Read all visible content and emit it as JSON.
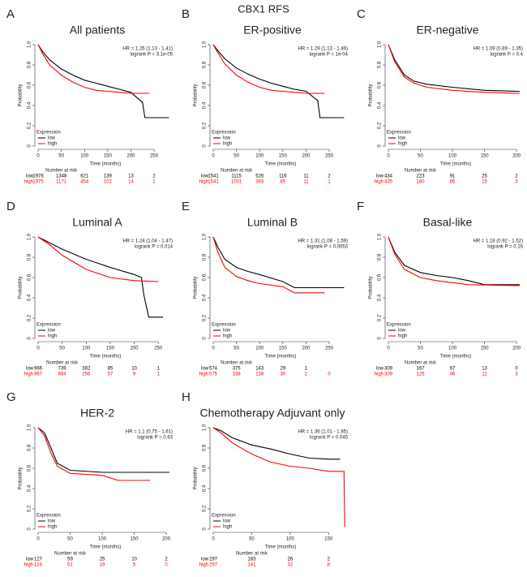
{
  "title": "CBX1 RFS",
  "chart_data": [
    {
      "type": "line",
      "letter": "A",
      "title": "All patients",
      "annotations": [
        "HR = 1.26 (1.13 - 1.41)",
        "logrank P = 3.1e-05"
      ],
      "x_label": "Time (months)",
      "y_label": "Probability",
      "xlim": [
        0,
        290
      ],
      "xticks": [
        0,
        50,
        100,
        150,
        200,
        250
      ],
      "ylim": [
        0,
        1
      ],
      "yticks": [
        0,
        0.2,
        0.4,
        0.6,
        0.8,
        {
          "value": 1,
          "label": "1.0"
        }
      ],
      "legend_title": "Expression",
      "risk_title": "Number at risk",
      "series": [
        {
          "name": "low",
          "color": "#000000",
          "x": [
            0,
            10,
            25,
            50,
            75,
            100,
            125,
            150,
            175,
            200,
            225,
            230,
            250,
            282
          ],
          "values": [
            1,
            0.93,
            0.85,
            0.76,
            0.7,
            0.65,
            0.62,
            0.59,
            0.56,
            0.53,
            0.43,
            0.28,
            0.28,
            0.28
          ],
          "at_risk": [
            1976,
            1348,
            621,
            139,
            13,
            2
          ]
        },
        {
          "name": "high",
          "color": "#ff0000",
          "x": [
            0,
            10,
            25,
            50,
            75,
            100,
            125,
            150,
            175,
            200,
            225,
            240
          ],
          "values": [
            1,
            0.91,
            0.8,
            0.7,
            0.63,
            0.58,
            0.55,
            0.54,
            0.53,
            0.52,
            0.52,
            0.52
          ],
          "at_risk": [
            1975,
            1171,
            454,
            102,
            14,
            1
          ]
        }
      ]
    },
    {
      "type": "line",
      "letter": "B",
      "title": "ER-positive",
      "annotations": [
        "HR = 1.29 (1.13 - 1.46)",
        "logrank P = 1e-04"
      ],
      "x_label": "Time (months)",
      "y_label": "Probability",
      "xlim": [
        0,
        290
      ],
      "xticks": [
        0,
        50,
        100,
        150,
        200,
        250
      ],
      "ylim": [
        0,
        1
      ],
      "yticks": [
        0,
        0.2,
        0.4,
        0.6,
        0.8,
        {
          "value": 1,
          "label": "1.0"
        }
      ],
      "legend_title": "Expression",
      "risk_title": "Number at risk",
      "series": [
        {
          "name": "low",
          "color": "#000000",
          "x": [
            0,
            10,
            25,
            50,
            75,
            100,
            125,
            150,
            175,
            200,
            225,
            230,
            250,
            282
          ],
          "values": [
            1,
            0.94,
            0.86,
            0.77,
            0.71,
            0.66,
            0.62,
            0.59,
            0.56,
            0.54,
            0.45,
            0.28,
            0.28,
            0.28
          ],
          "at_risk": [
            1541,
            1115,
            526,
            116,
            11,
            2
          ]
        },
        {
          "name": "high",
          "color": "#ff0000",
          "x": [
            0,
            10,
            25,
            50,
            75,
            100,
            125,
            150,
            175,
            200,
            225,
            240
          ],
          "values": [
            1,
            0.92,
            0.81,
            0.7,
            0.63,
            0.58,
            0.55,
            0.54,
            0.53,
            0.52,
            0.52,
            0.52
          ],
          "at_risk": [
            1541,
            1001,
            393,
            85,
            11,
            1
          ]
        }
      ]
    },
    {
      "type": "line",
      "letter": "C",
      "title": "ER-negative",
      "annotations": [
        "HR = 1.09 (0.89 - 1.35)",
        "logrank P = 0.4"
      ],
      "x_label": "Time (months)",
      "y_label": "Probability",
      "xlim": [
        0,
        210
      ],
      "xticks": [
        0,
        50,
        100,
        150,
        200
      ],
      "ylim": [
        0,
        1
      ],
      "yticks": [
        0,
        0.2,
        0.4,
        0.6,
        0.8,
        {
          "value": 1,
          "label": "1.0"
        }
      ],
      "legend_title": "Expression",
      "risk_title": "Number at risk",
      "series": [
        {
          "name": "low",
          "color": "#000000",
          "x": [
            0,
            10,
            25,
            40,
            60,
            100,
            150,
            200,
            205
          ],
          "values": [
            1,
            0.85,
            0.7,
            0.64,
            0.61,
            0.58,
            0.55,
            0.54,
            0.54
          ],
          "at_risk": [
            434,
            223,
            91,
            25,
            2
          ]
        },
        {
          "name": "high",
          "color": "#ff0000",
          "x": [
            0,
            10,
            25,
            40,
            60,
            100,
            150,
            200,
            205
          ],
          "values": [
            1,
            0.83,
            0.68,
            0.62,
            0.58,
            0.55,
            0.53,
            0.52,
            0.52
          ],
          "at_risk": [
            435,
            180,
            65,
            15,
            3
          ]
        }
      ]
    },
    {
      "type": "line",
      "letter": "D",
      "title": "Luminal A",
      "annotations": [
        "HR = 1.24 (1.04 - 1.47)",
        "logrank P = 0.014"
      ],
      "x_label": "Time (months)",
      "y_label": "Probability",
      "xlim": [
        0,
        280
      ],
      "xticks": [
        0,
        50,
        100,
        150,
        200,
        250
      ],
      "ylim": [
        0,
        1
      ],
      "yticks": [
        0,
        0.2,
        0.4,
        0.6,
        0.8,
        {
          "value": 1,
          "label": "1.0"
        }
      ],
      "legend_title": "Expression",
      "risk_title": "Number at risk",
      "series": [
        {
          "name": "low",
          "color": "#000000",
          "x": [
            0,
            25,
            50,
            100,
            150,
            200,
            215,
            220,
            230,
            260
          ],
          "values": [
            1,
            0.94,
            0.88,
            0.78,
            0.7,
            0.63,
            0.6,
            0.43,
            0.21,
            0.21
          ],
          "at_risk": [
            966,
            739,
            382,
            85,
            10,
            1
          ]
        },
        {
          "name": "high",
          "color": "#ff0000",
          "x": [
            0,
            25,
            50,
            100,
            150,
            200,
            250
          ],
          "values": [
            1,
            0.92,
            0.82,
            0.68,
            0.6,
            0.57,
            0.56
          ],
          "at_risk": [
            967,
            664,
            256,
            57,
            9,
            1
          ]
        }
      ]
    },
    {
      "type": "line",
      "letter": "E",
      "title": "Luminal B",
      "annotations": [
        "HR = 1.31 (1.08 - 1.59)",
        "logrank P = 0.0053"
      ],
      "x_label": "Time (months)",
      "y_label": "Probability",
      "xlim": [
        0,
        290
      ],
      "xticks": [
        0,
        50,
        100,
        150,
        200,
        250
      ],
      "ylim": [
        0,
        1
      ],
      "yticks": [
        0,
        0.2,
        0.4,
        0.6,
        0.8,
        {
          "value": 1,
          "label": "1.0"
        }
      ],
      "legend_title": "Expression",
      "risk_title": "Number at risk",
      "series": [
        {
          "name": "low",
          "color": "#000000",
          "x": [
            0,
            10,
            25,
            50,
            75,
            100,
            150,
            175,
            200,
            282
          ],
          "values": [
            1,
            0.9,
            0.78,
            0.7,
            0.66,
            0.63,
            0.56,
            0.5,
            0.5,
            0.5
          ],
          "at_risk": [
            574,
            375,
            143,
            29,
            1,
            null
          ]
        },
        {
          "name": "high",
          "color": "#ff0000",
          "x": [
            0,
            10,
            25,
            50,
            75,
            100,
            150,
            175,
            200,
            240
          ],
          "values": [
            1,
            0.85,
            0.7,
            0.61,
            0.57,
            0.54,
            0.51,
            0.45,
            0.45,
            0.45
          ],
          "at_risk": [
            575,
            338,
            138,
            30,
            2,
            0
          ]
        }
      ]
    },
    {
      "type": "line",
      "letter": "F",
      "title": "Basal-like",
      "annotations": [
        "HR = 1.18 (0.92 - 1.52)",
        "logrank P = 0.19"
      ],
      "x_label": "Time (months)",
      "y_label": "Probability",
      "xlim": [
        0,
        210
      ],
      "xticks": [
        0,
        50,
        100,
        150,
        200
      ],
      "ylim": [
        0,
        1
      ],
      "yticks": [
        0,
        0.2,
        0.4,
        0.6,
        0.8,
        {
          "value": 1,
          "label": "1.0"
        }
      ],
      "legend_title": "Expression",
      "risk_title": "Number at risk",
      "series": [
        {
          "name": "low",
          "color": "#000000",
          "x": [
            0,
            10,
            25,
            50,
            75,
            100,
            125,
            150,
            205
          ],
          "values": [
            1,
            0.85,
            0.72,
            0.65,
            0.62,
            0.6,
            0.57,
            0.53,
            0.53
          ],
          "at_risk": [
            309,
            167,
            67,
            13,
            0
          ]
        },
        {
          "name": "high",
          "color": "#ff0000",
          "x": [
            0,
            10,
            25,
            50,
            75,
            100,
            125,
            205
          ],
          "values": [
            1,
            0.83,
            0.68,
            0.6,
            0.57,
            0.55,
            0.53,
            0.52
          ],
          "at_risk": [
            309,
            126,
            46,
            12,
            3
          ]
        }
      ]
    },
    {
      "type": "line",
      "letter": "G",
      "title": "HER-2",
      "annotations": [
        "HR = 1.1 (0.75 - 1.61)",
        "logrank P = 0.63"
      ],
      "x_label": "Time (months)",
      "y_label": "Probability",
      "xlim": [
        0,
        210
      ],
      "xticks": [
        0,
        50,
        100,
        150,
        200
      ],
      "ylim": [
        0,
        1
      ],
      "yticks": [
        0,
        0.2,
        0.4,
        0.6,
        0.8,
        {
          "value": 1,
          "label": "1.0"
        }
      ],
      "legend_title": "Expression",
      "risk_title": "Number at risk",
      "series": [
        {
          "name": "low",
          "color": "#000000",
          "x": [
            0,
            10,
            20,
            30,
            50,
            100,
            150,
            205
          ],
          "values": [
            1,
            0.95,
            0.8,
            0.65,
            0.58,
            0.56,
            0.56,
            0.56
          ],
          "at_risk": [
            127,
            59,
            25,
            10,
            2
          ]
        },
        {
          "name": "high",
          "color": "#ff0000",
          "x": [
            0,
            10,
            20,
            30,
            50,
            100,
            125,
            175
          ],
          "values": [
            1,
            0.92,
            0.75,
            0.62,
            0.55,
            0.53,
            0.48,
            0.48
          ],
          "at_risk": [
            124,
            51,
            19,
            5,
            0
          ]
        }
      ]
    },
    {
      "type": "line",
      "letter": "H",
      "title": "Chemotherapy Adjuvant only",
      "annotations": [
        "HR = 1.36 (1.01 - 1.85)",
        "logrank P = 0.045"
      ],
      "x_label": "Time (months)",
      "y_label": "Probability",
      "xlim": [
        0,
        175
      ],
      "xticks": [
        0,
        50,
        100,
        150
      ],
      "ylim": [
        0,
        1
      ],
      "yticks": [
        0,
        0.2,
        0.4,
        0.6,
        0.8,
        {
          "value": 1,
          "label": "1.0"
        }
      ],
      "legend_title": "Expression",
      "risk_title": "Number at risk",
      "series": [
        {
          "name": "low",
          "color": "#000000",
          "x": [
            0,
            10,
            25,
            50,
            75,
            100,
            125,
            150,
            165
          ],
          "values": [
            1,
            0.97,
            0.9,
            0.83,
            0.79,
            0.74,
            0.7,
            0.69,
            0.69
          ],
          "at_risk": [
            297,
            183,
            26,
            2
          ]
        },
        {
          "name": "high",
          "color": "#ff0000",
          "x": [
            0,
            10,
            25,
            50,
            75,
            100,
            125,
            150,
            170,
            171
          ],
          "values": [
            1,
            0.95,
            0.85,
            0.74,
            0.66,
            0.62,
            0.6,
            0.57,
            0.57,
            0.02
          ],
          "at_risk": [
            297,
            141,
            32,
            8
          ]
        }
      ]
    }
  ]
}
